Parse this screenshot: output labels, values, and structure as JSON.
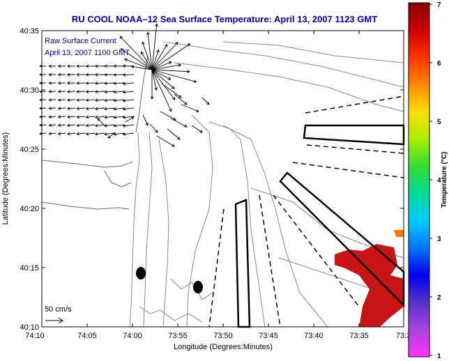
{
  "title": "RU COOL  NOAA–12  Sea Surface Temperature:  April 13, 2007 1123 GMT",
  "legend_lines": [
    "Raw Surface Current",
    "April 13, 2007 1100 GMT"
  ],
  "scale_label": "50 cm/s",
  "x_axis": {
    "label": "Longitude (Degrees:Minutes)",
    "ticks": [
      "74:10",
      "74:05",
      "74:00",
      "73:55",
      "73:50",
      "73:45",
      "73:40",
      "73:35",
      "73:3"
    ]
  },
  "y_axis": {
    "label": "Latitude (Degrees:Minutes)",
    "ticks": [
      "40:35",
      "40:30",
      "40:25",
      "40:20",
      "40:15",
      "40:10"
    ]
  },
  "colorbar": {
    "label": "Temperature (°C)",
    "min": 1,
    "max": 7,
    "ticks": [
      "7",
      "6",
      "5",
      "4",
      "3",
      "2",
      "1"
    ],
    "colors": [
      "#8b0000",
      "#cc0000",
      "#ff3300",
      "#ff8800",
      "#ffdd00",
      "#aaee00",
      "#33dd33",
      "#00dd99",
      "#00ccff",
      "#0077ff",
      "#0000ee",
      "#5533cc",
      "#aa44dd",
      "#ff33ff"
    ]
  },
  "colors": {
    "title": "#0000a0",
    "land_contour": "#888888",
    "sst_warm": "#c81414"
  }
}
